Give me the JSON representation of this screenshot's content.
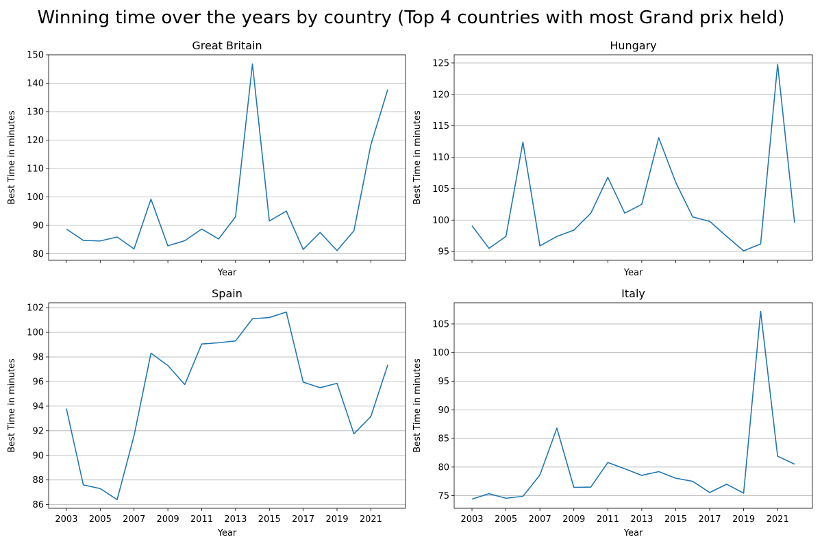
{
  "figure": {
    "title": "Winning time over the years by country (Top 4 countries with most Grand prix held)"
  },
  "chart_data": [
    {
      "type": "line",
      "title": "Great Britain",
      "xlabel": "Year",
      "ylabel": "Best Time in minutes",
      "x": [
        2003,
        2004,
        2005,
        2006,
        2007,
        2008,
        2009,
        2010,
        2011,
        2012,
        2013,
        2014,
        2015,
        2016,
        2017,
        2018,
        2019,
        2020,
        2021,
        2022
      ],
      "values": [
        88.7,
        84.7,
        84.5,
        85.9,
        81.7,
        99.2,
        82.8,
        84.6,
        88.7,
        85.2,
        93.0,
        146.8,
        91.5,
        95.0,
        81.5,
        87.5,
        81.1,
        88.1,
        118.3,
        137.8
      ],
      "xlim": [
        2001.95,
        2023.05
      ],
      "ylim": [
        77.7,
        150
      ],
      "yticks": [
        80,
        90,
        100,
        110,
        120,
        130,
        140,
        150
      ],
      "xticks": [
        2003,
        2005,
        2007,
        2009,
        2011,
        2013,
        2015,
        2017,
        2019,
        2021
      ],
      "show_xtick_labels": false,
      "grid": "y",
      "color": "#1f77b4"
    },
    {
      "type": "line",
      "title": "Hungary",
      "xlabel": "Year",
      "ylabel": "Best Time in minutes",
      "x": [
        2003,
        2004,
        2005,
        2006,
        2007,
        2008,
        2009,
        2010,
        2011,
        2012,
        2013,
        2014,
        2015,
        2016,
        2017,
        2018,
        2019,
        2020,
        2021,
        2022
      ],
      "values": [
        99.1,
        95.5,
        97.4,
        112.4,
        95.9,
        97.4,
        98.4,
        101.1,
        106.8,
        101.1,
        102.5,
        113.1,
        106.0,
        100.5,
        99.8,
        97.4,
        95.1,
        96.2,
        124.8,
        99.6
      ],
      "xlim": [
        2001.95,
        2023.05
      ],
      "ylim": [
        93.6,
        126.3
      ],
      "yticks": [
        95,
        100,
        105,
        110,
        115,
        120,
        125
      ],
      "xticks": [
        2003,
        2005,
        2007,
        2009,
        2011,
        2013,
        2015,
        2017,
        2019,
        2021
      ],
      "show_xtick_labels": false,
      "grid": "y",
      "color": "#1f77b4"
    },
    {
      "type": "line",
      "title": "Spain",
      "xlabel": "Year",
      "ylabel": "Best Time in minutes",
      "x": [
        2003,
        2004,
        2005,
        2006,
        2007,
        2008,
        2009,
        2010,
        2011,
        2012,
        2013,
        2014,
        2015,
        2016,
        2017,
        2018,
        2019,
        2020,
        2021,
        2022
      ],
      "values": [
        93.8,
        87.6,
        87.3,
        86.4,
        91.6,
        98.3,
        97.3,
        95.75,
        99.05,
        99.15,
        99.3,
        101.1,
        101.2,
        101.65,
        95.95,
        95.5,
        95.85,
        91.75,
        93.15,
        97.35
      ],
      "xlim": [
        2001.95,
        2023.05
      ],
      "ylim": [
        85.7,
        102.4
      ],
      "yticks": [
        86,
        88,
        90,
        92,
        94,
        96,
        98,
        100,
        102
      ],
      "xticks": [
        2003,
        2005,
        2007,
        2009,
        2011,
        2013,
        2015,
        2017,
        2019,
        2021
      ],
      "show_xtick_labels": true,
      "grid": "y",
      "color": "#1f77b4"
    },
    {
      "type": "line",
      "title": "Italy",
      "xlabel": "Year",
      "ylabel": "Best Time in minutes",
      "x": [
        2003,
        2004,
        2005,
        2006,
        2007,
        2008,
        2009,
        2010,
        2011,
        2012,
        2013,
        2014,
        2015,
        2016,
        2017,
        2018,
        2019,
        2020,
        2021,
        2022
      ],
      "values": [
        74.4,
        75.35,
        74.55,
        74.9,
        78.6,
        86.8,
        76.45,
        76.5,
        80.8,
        79.7,
        78.55,
        79.2,
        78.05,
        77.5,
        75.55,
        77.0,
        75.45,
        107.2,
        81.9,
        80.5
      ],
      "xlim": [
        2001.95,
        2023.05
      ],
      "ylim": [
        72.8,
        108.7
      ],
      "yticks": [
        75,
        80,
        85,
        90,
        95,
        100,
        105
      ],
      "xticks": [
        2003,
        2005,
        2007,
        2009,
        2011,
        2013,
        2015,
        2017,
        2019,
        2021
      ],
      "show_xtick_labels": true,
      "grid": "y",
      "color": "#1f77b4"
    }
  ]
}
